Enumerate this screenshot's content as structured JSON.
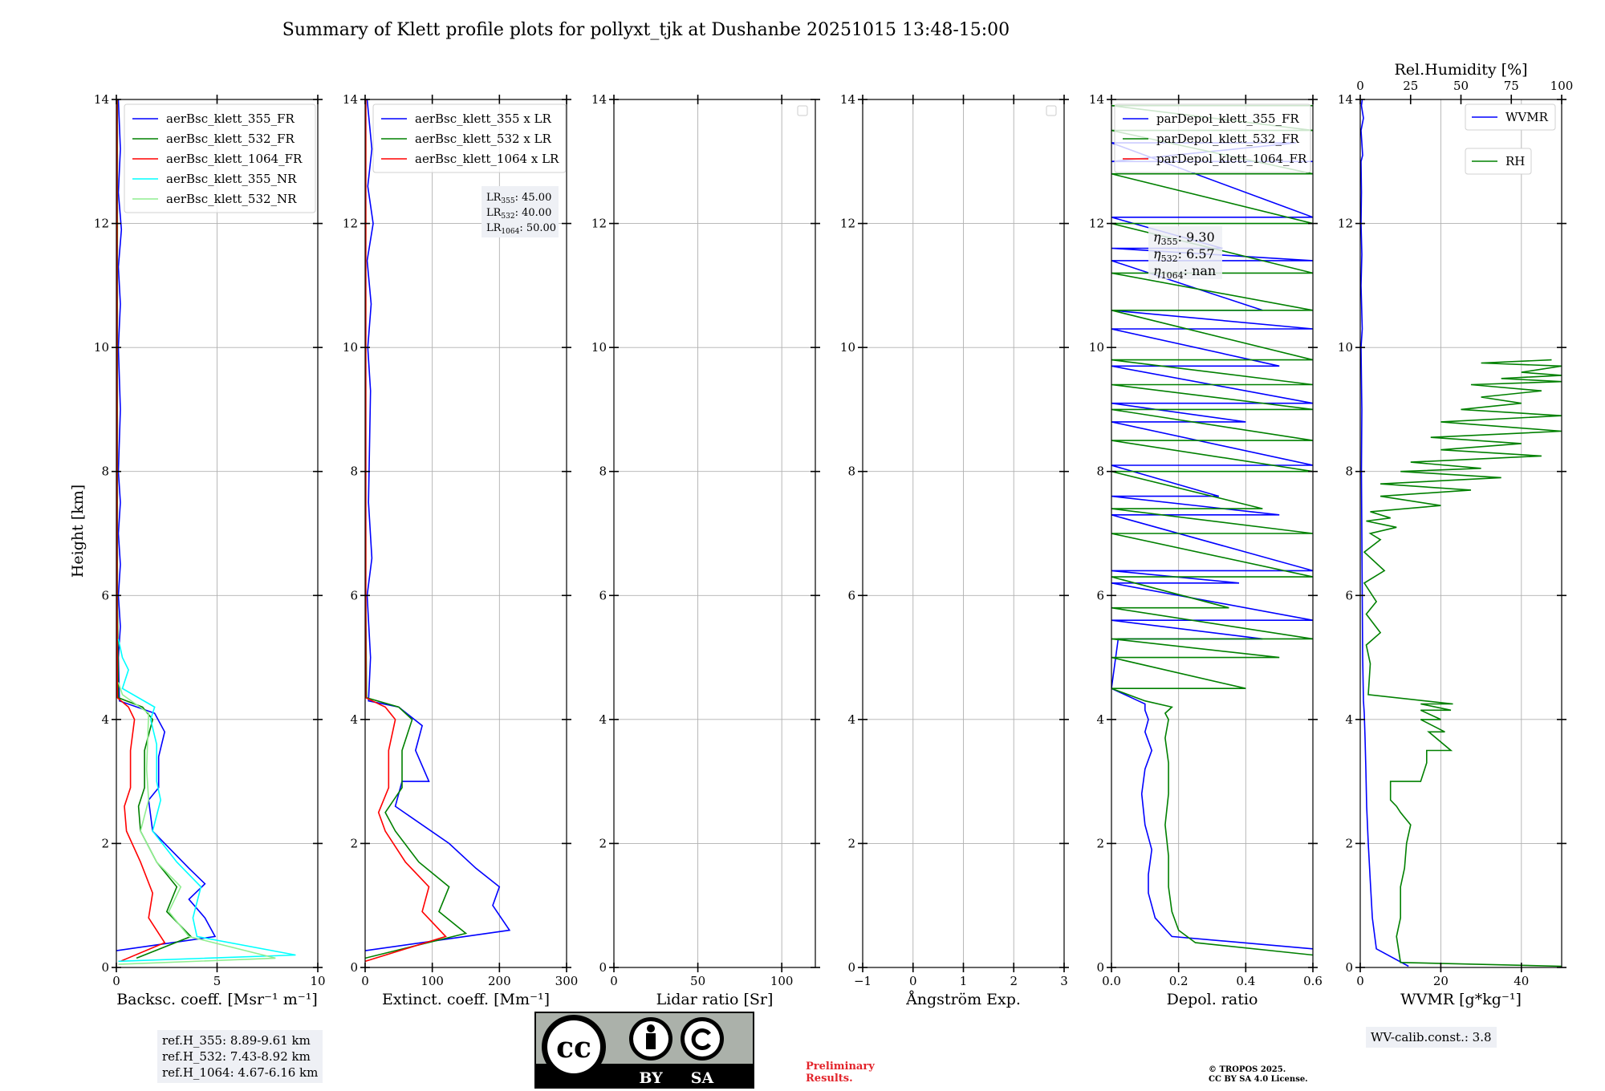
{
  "title": "Summary of Klett profile plots for pollyxt_tjk at Dushanbe 20251015 13:48-15:00",
  "ylabel": "Height [km]",
  "chart_data": [
    {
      "type": "line",
      "xlabel": "Backsc. coeff. [Msr⁻¹ m⁻¹]",
      "xlim": [
        0,
        10
      ],
      "ylim": [
        0,
        14
      ],
      "xticks": [
        "0",
        "5",
        "10"
      ],
      "legend": "top-right",
      "series": [
        {
          "name": "aerBsc_klett_355_FR",
          "color": "#0000ff",
          "x": [
            0,
            4.9,
            4.4,
            3.6,
            4.4,
            3.6,
            1.8,
            1.6,
            2.1,
            2.1,
            2.4,
            1.9,
            0.15,
            0.1,
            0.2,
            0.1,
            0.2,
            0.1,
            0.2,
            0.1,
            0.2,
            0.1,
            0.2,
            0.1,
            0.25,
            0.1,
            0.2,
            0.1
          ],
          "y": [
            0.27,
            0.5,
            0.8,
            1.1,
            1.35,
            1.6,
            2.2,
            2.7,
            2.9,
            3.4,
            3.8,
            4.1,
            4.3,
            5,
            5.5,
            6,
            6.5,
            7,
            7.5,
            8,
            9,
            10,
            10.7,
            11.3,
            11.9,
            12.5,
            13.2,
            14
          ]
        },
        {
          "name": "aerBsc_klett_532_FR",
          "color": "#008000",
          "x": [
            1.0,
            3.7,
            2.5,
            3.0,
            2.0,
            1.2,
            1.1,
            1.4,
            1.4,
            1.8,
            1.3,
            0.1,
            0.05,
            0.05
          ],
          "y": [
            0.15,
            0.5,
            0.9,
            1.3,
            1.7,
            2.2,
            2.6,
            2.9,
            3.5,
            4.0,
            4.2,
            4.35,
            6,
            14
          ]
        },
        {
          "name": "aerBsc_klett_1064_FR",
          "color": "#ff0000",
          "x": [
            0.2,
            2.4,
            1.6,
            1.8,
            1.2,
            0.5,
            0.4,
            0.7,
            0.7,
            0.9,
            0.6,
            0.05,
            0.03,
            0.03
          ],
          "y": [
            0.1,
            0.4,
            0.8,
            1.2,
            1.7,
            2.2,
            2.6,
            2.9,
            3.5,
            4.0,
            4.2,
            4.35,
            6,
            14
          ]
        },
        {
          "name": "aerBsc_klett_355_NR",
          "color": "#00ffff",
          "x": [
            0.1,
            8.9,
            4.0,
            3.8,
            4.2,
            3.0,
            1.8,
            2.2,
            2.0,
            2.0,
            1.7,
            1.9,
            0.3,
            0.6,
            0.3,
            0.1
          ],
          "y": [
            0.1,
            0.2,
            0.5,
            0.8,
            1.3,
            1.7,
            2.2,
            2.7,
            3.0,
            3.6,
            4.0,
            4.2,
            4.5,
            4.8,
            5.0,
            5.3
          ]
        },
        {
          "name": "aerBsc_klett_532_NR",
          "color": "#90ee90",
          "x": [
            0.1,
            7.9,
            3.6,
            2.6,
            3.2,
            2.0,
            1.2,
            1.6,
            1.5,
            1.6,
            0.3,
            0.1
          ],
          "y": [
            0.05,
            0.15,
            0.5,
            0.9,
            1.3,
            1.7,
            2.2,
            2.7,
            3.2,
            4.1,
            4.4,
            4.6
          ]
        }
      ]
    },
    {
      "type": "line",
      "xlabel": "Extinct. coeff. [Mm⁻¹]",
      "xlim": [
        0,
        300
      ],
      "ylim": [
        0,
        14
      ],
      "xticks": [
        "0",
        "100",
        "200",
        "300"
      ],
      "legend": "top-right",
      "annotation": [
        "LR355: 45.00",
        "LR532: 40.00",
        "LR1064: 50.00"
      ],
      "series": [
        {
          "name": "aerBsc_klett_355 x LR",
          "color": "#0000ff",
          "x": [
            0,
            215,
            190,
            200,
            165,
            125,
            45,
            55,
            95,
            75,
            85,
            50,
            5,
            8,
            3,
            10,
            5,
            8,
            4,
            9,
            3,
            12,
            4,
            10,
            3
          ],
          "y": [
            0.27,
            0.6,
            1.0,
            1.3,
            1.6,
            2.0,
            2.6,
            3.0,
            3.0,
            3.5,
            3.9,
            4.2,
            4.3,
            5,
            6,
            6.6,
            7.5,
            9.3,
            10,
            10.7,
            11.4,
            12,
            12.6,
            13.2,
            14
          ]
        },
        {
          "name": "aerBsc_klett_532 x LR",
          "color": "#008000",
          "x": [
            0,
            150,
            110,
            125,
            80,
            45,
            30,
            55,
            55,
            70,
            50,
            2,
            1,
            1
          ],
          "y": [
            0.15,
            0.55,
            0.9,
            1.3,
            1.7,
            2.2,
            2.5,
            2.9,
            3.5,
            4.0,
            4.2,
            4.35,
            6,
            14
          ]
        },
        {
          "name": "aerBsc_klett_1064 x LR",
          "color": "#ff0000",
          "x": [
            0,
            120,
            85,
            95,
            60,
            30,
            20,
            35,
            35,
            45,
            30,
            1,
            1
          ],
          "y": [
            0.1,
            0.5,
            0.9,
            1.3,
            1.7,
            2.2,
            2.5,
            2.9,
            3.5,
            4.0,
            4.2,
            4.35,
            14
          ]
        }
      ]
    },
    {
      "type": "line",
      "xlabel": "Lidar ratio [Sr]",
      "xlim": [
        0,
        120
      ],
      "ylim": [
        0,
        14
      ],
      "xticks": [
        "0",
        "50",
        "100"
      ],
      "legend": "top-right",
      "series": []
    },
    {
      "type": "line",
      "xlabel": "Ångström Exp.",
      "xlim": [
        -1,
        3
      ],
      "ylim": [
        0,
        14
      ],
      "xticks": [
        "−1",
        "0",
        "1",
        "2",
        "3"
      ],
      "legend": "top-right",
      "series": []
    },
    {
      "type": "line",
      "xlabel": "Depol. ratio",
      "xlim": [
        0,
        0.6
      ],
      "ylim": [
        0,
        14
      ],
      "xticks": [
        "0.0",
        "0.2",
        "0.4",
        "0.6"
      ],
      "legend": "top-left",
      "annotation": [
        "η355: 9.30",
        "η532: 6.57",
        "η1064: nan"
      ],
      "series": [
        {
          "name": "parDepol_klett_355_FR",
          "color": "#0000ff",
          "x": [
            0.6,
            0.18,
            0.13,
            0.11,
            0.11,
            0.12,
            0.1,
            0.09,
            0.1,
            0.12,
            0.1,
            0.11,
            0.1,
            0.1,
            0.08,
            0.0,
            0.02,
            0.45,
            0.0,
            0.6,
            0.0,
            0.38,
            0.0,
            0.6,
            0.0,
            0.5,
            0.0,
            0.32,
            0.0,
            0.6,
            0.0,
            0.4,
            0.0,
            0.6,
            0.0,
            0.5,
            0.0,
            0.6,
            0.0,
            0.45,
            0.0,
            0.6,
            0.0,
            0.33,
            0.0,
            0.6,
            0.0,
            0.55,
            0.0,
            0.6
          ],
          "y": [
            0.3,
            0.5,
            0.8,
            1.2,
            1.5,
            1.9,
            2.3,
            2.8,
            3.2,
            3.5,
            3.8,
            4.0,
            4.15,
            4.25,
            4.3,
            4.5,
            5.3,
            5.3,
            5.6,
            5.6,
            6.2,
            6.2,
            6.4,
            6.4,
            7.3,
            7.3,
            7.6,
            7.6,
            8.1,
            8.1,
            8.8,
            8.8,
            9.1,
            9.1,
            9.7,
            9.7,
            10.3,
            10.3,
            10.6,
            10.6,
            11.4,
            11.4,
            11.6,
            11.6,
            12.1,
            12.1,
            13.3,
            13.3,
            13.0,
            13.0
          ]
        },
        {
          "name": "parDepol_klett_532_FR",
          "color": "#008000",
          "x": [
            0.6,
            0.25,
            0.2,
            0.18,
            0.17,
            0.17,
            0.16,
            0.17,
            0.17,
            0.16,
            0.17,
            0.16,
            0.18,
            0.1,
            0.0,
            0.4,
            0.0,
            0.5,
            0.0,
            0.6,
            0.0,
            0.35,
            0.0,
            0.6,
            0.0,
            0.6,
            0.0,
            0.45,
            0.0,
            0.6,
            0.0,
            0.6,
            0.0,
            0.6,
            0.0,
            0.6,
            0.0,
            0.6,
            0.0,
            0.6,
            0.0,
            0.6,
            0.0,
            0.6,
            0.0,
            0.6,
            0.0,
            0.6,
            0.0,
            0.6
          ],
          "y": [
            0.2,
            0.4,
            0.6,
            0.9,
            1.3,
            1.8,
            2.3,
            2.8,
            3.3,
            3.7,
            4.0,
            4.1,
            4.2,
            4.3,
            4.5,
            4.5,
            5.0,
            5.0,
            5.3,
            5.3,
            5.8,
            5.8,
            6.3,
            6.3,
            7.0,
            7.0,
            7.4,
            7.4,
            8.0,
            8.0,
            8.5,
            8.5,
            9.0,
            9.0,
            9.4,
            9.4,
            9.8,
            9.8,
            10.6,
            10.6,
            11.2,
            11.2,
            12.0,
            12.0,
            12.8,
            12.8,
            13.5,
            13.5,
            13.9,
            13.9
          ]
        },
        {
          "name": "parDepol_klett_1064_FR",
          "color": "#ff0000",
          "x": [],
          "y": []
        }
      ]
    },
    {
      "type": "line",
      "xlabel": "WVMR [g*kg⁻¹]",
      "xlim": [
        0,
        50
      ],
      "ylim": [
        0,
        14
      ],
      "xticks": [
        "0",
        "20",
        "40"
      ],
      "x2label": "Rel.Humidity [%]",
      "x2lim": [
        0,
        100
      ],
      "x2ticks": [
        "0",
        "25",
        "50",
        "75",
        "100"
      ],
      "legend": "top-right",
      "annotation": [
        "WV-calib.const.: 3.8"
      ],
      "series": [
        {
          "name": "WVMR",
          "color": "#0000ff",
          "axis": "bottom",
          "x": [
            12,
            4,
            3,
            2.5,
            2,
            1.6,
            1.4,
            1.2,
            1,
            0.8,
            0.6,
            0.5,
            0.4,
            0.3,
            0.4,
            0.2,
            0.5,
            0.2,
            0.4,
            0.2,
            0.3,
            0.2,
            0.6,
            0.2,
            0.8,
            0.3,
            0.5
          ],
          "y": [
            0.02,
            0.3,
            0.8,
            1.4,
            2.0,
            2.6,
            3.2,
            3.7,
            4.1,
            4.3,
            5,
            6,
            7,
            8,
            9,
            10,
            10.3,
            11,
            11.5,
            12,
            12.5,
            13,
            13.1,
            13.5,
            13.7,
            13.9,
            14
          ]
        },
        {
          "name": "RH",
          "color": "#008000",
          "axis": "top",
          "x": [
            100,
            20,
            18,
            20,
            20,
            22,
            23,
            25,
            20,
            18,
            15,
            15,
            30,
            33,
            33,
            45,
            34,
            42,
            30,
            40,
            30,
            45,
            30,
            46,
            4,
            5,
            3,
            10,
            3,
            8,
            2,
            12,
            2,
            10,
            5,
            18,
            3,
            15,
            5,
            40,
            10,
            55,
            10,
            70,
            20,
            60,
            25,
            90,
            40,
            80,
            35,
            100,
            40,
            100,
            50,
            80,
            60,
            90,
            55,
            100,
            70,
            100,
            80,
            100,
            60,
            95
          ],
          "y": [
            0.02,
            0.08,
            0.5,
            0.8,
            1.3,
            1.6,
            2.0,
            2.3,
            2.5,
            2.6,
            2.7,
            3.0,
            3.0,
            3.3,
            3.5,
            3.5,
            3.8,
            3.8,
            4.0,
            4.0,
            4.15,
            4.15,
            4.25,
            4.25,
            4.4,
            4.9,
            5.2,
            5.4,
            5.7,
            5.9,
            6.2,
            6.4,
            6.7,
            6.9,
            7.0,
            7.1,
            7.2,
            7.25,
            7.35,
            7.45,
            7.6,
            7.7,
            7.8,
            7.9,
            8.0,
            8.05,
            8.15,
            8.25,
            8.35,
            8.45,
            8.55,
            8.65,
            8.8,
            8.9,
            9.0,
            9.1,
            9.2,
            9.3,
            9.4,
            9.45,
            9.5,
            9.55,
            9.6,
            9.7,
            9.75,
            9.8
          ]
        }
      ]
    }
  ],
  "ref_heights": [
    "ref.H_355: 8.89-9.61 km",
    "ref.H_532: 7.43-8.92 km",
    "ref.H_1064: 4.67-6.16 km"
  ],
  "license_logo": {
    "cc": "cc",
    "by": "BY",
    "sa": "SA"
  },
  "preliminary": [
    "Preliminary",
    "Results."
  ],
  "copyright": [
    "© TROPOS 2025.",
    "CC BY SA 4.0 License."
  ]
}
